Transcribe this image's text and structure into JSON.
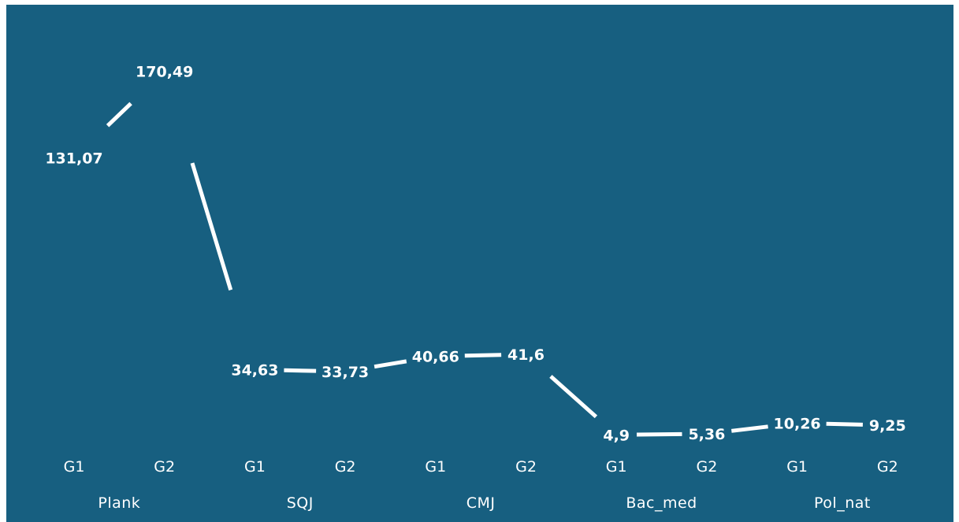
{
  "colors": {
    "background": "#175f80",
    "line": "#ffffff",
    "text": "#ffffff"
  },
  "chart_data": {
    "type": "line",
    "x": [
      "G1",
      "G2",
      "G1",
      "G2",
      "G1",
      "G2",
      "G1",
      "G2",
      "G1",
      "G2"
    ],
    "groups": [
      {
        "label": "Plank",
        "span": [
          0,
          1
        ]
      },
      {
        "label": "SQJ",
        "span": [
          2,
          3
        ]
      },
      {
        "label": "CMJ",
        "span": [
          4,
          5
        ]
      },
      {
        "label": "Bac_med",
        "span": [
          6,
          7
        ]
      },
      {
        "label": "Pol_nat",
        "span": [
          8,
          9
        ]
      }
    ],
    "series": [
      {
        "values": [
          131.07,
          170.49,
          34.63,
          33.73,
          40.66,
          41.6,
          4.9,
          5.36,
          10.26,
          9.25
        ],
        "data_labels": [
          "131,07",
          "170,49",
          "34,63",
          "33,73",
          "40,66",
          "41,6",
          "4,9",
          "5,36",
          "10,26",
          "9,25"
        ]
      }
    ],
    "title": "",
    "xlabel": "",
    "ylabel": "",
    "ylim": [
      0,
      175
    ],
    "grid": false,
    "legend": "none",
    "drop_lines": true
  }
}
